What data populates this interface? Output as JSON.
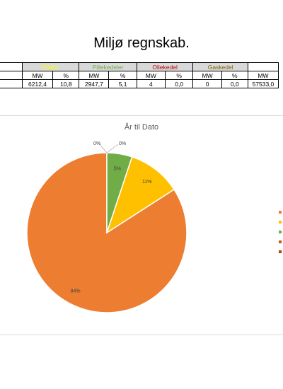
{
  "page": {
    "title": "Miljø regnskab."
  },
  "table": {
    "groups": [
      {
        "label": "",
        "color": "#000000"
      },
      {
        "label": "Flisfyr",
        "color": "#ffff00"
      },
      {
        "label": "Pillekedeler",
        "color": "#70ad47"
      },
      {
        "label": "Oliekedel",
        "color": "#c00000"
      },
      {
        "label": "Gaskedel",
        "color": "#806000"
      },
      {
        "label": "",
        "color": "#000000"
      }
    ],
    "units": [
      "MW",
      "%",
      "MW",
      "%",
      "MW",
      "%",
      "MW",
      "%",
      "MW"
    ],
    "values": [
      "6212,4",
      "10,8",
      "2947,7",
      "5,1",
      "4",
      "0,0",
      "0",
      "0,0",
      "57533,0"
    ]
  },
  "chart_data": {
    "type": "pie",
    "title": "År til Dato",
    "slices": [
      {
        "label": "84%",
        "value": 84.1,
        "color": "#ed7d31"
      },
      {
        "label": "11%",
        "value": 10.8,
        "color": "#ffc000"
      },
      {
        "label": "5%",
        "value": 5.1,
        "color": "#70ad47"
      },
      {
        "label": "0%",
        "value": 0.0,
        "color": "#c55a11"
      },
      {
        "label": "0%",
        "value": 0.0,
        "color": "#9e480e"
      }
    ],
    "legend": {
      "placement": "right",
      "colors": [
        "#ed7d31",
        "#ffc000",
        "#70ad47",
        "#c55a11",
        "#9e480e"
      ]
    }
  }
}
